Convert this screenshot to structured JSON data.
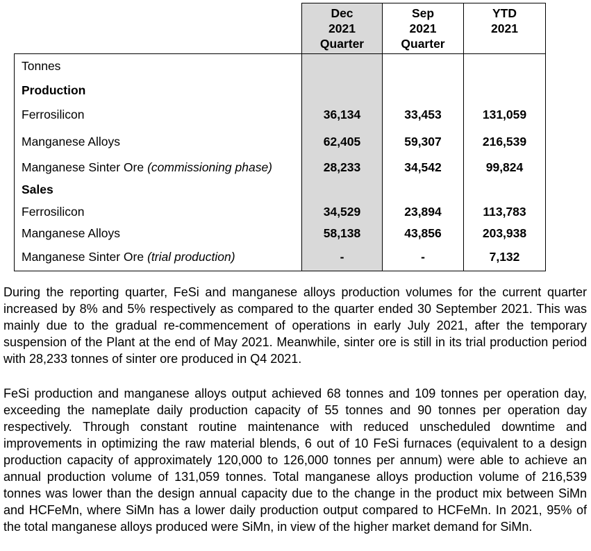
{
  "colors": {
    "highlight_fill": "#d9d9d9",
    "border": "#000000",
    "text": "#000000",
    "background": "#ffffff"
  },
  "table": {
    "headers": [
      {
        "label": "Dec\n2021\nQuarter",
        "highlighted": true
      },
      {
        "label": "Sep\n2021\nQuarter",
        "highlighted": false
      },
      {
        "label": "YTD\n2021",
        "highlighted": false
      }
    ],
    "rows": [
      {
        "label": "Tonnes",
        "style": "plain",
        "values": [
          "",
          "",
          ""
        ]
      },
      {
        "label": "Production",
        "style": "section",
        "values": [
          "",
          "",
          ""
        ]
      },
      {
        "label": "Ferrosilicon",
        "style": "item",
        "values": [
          "36,134",
          "33,453",
          "131,059"
        ]
      },
      {
        "label": "Manganese Alloys",
        "style": "item",
        "values": [
          "62,405",
          "59,307",
          "216,539"
        ]
      },
      {
        "label": "Manganese Sinter Ore",
        "note": "(commissioning phase)",
        "style": "item",
        "values": [
          "28,233",
          "34,542",
          "99,824"
        ]
      },
      {
        "label": "Sales",
        "style": "section",
        "values": [
          "",
          "",
          ""
        ]
      },
      {
        "label": "Ferrosilicon",
        "style": "item",
        "values": [
          "34,529",
          "23,894",
          "113,783"
        ]
      },
      {
        "label": "Manganese Alloys",
        "style": "item",
        "values": [
          "58,138",
          "43,856",
          "203,938"
        ]
      },
      {
        "label": "Manganese Sinter Ore",
        "note": "(trial production)",
        "style": "item",
        "values": [
          "-",
          "-",
          "7,132"
        ]
      }
    ]
  },
  "paragraphs": [
    {
      "text": "During the reporting quarter, FeSi and manganese alloys production volumes for the current quarter increased by 8% and 5% respectively as compared to the quarter ended 30 September 2021. This was mainly due to the gradual re-commencement of operations in early July 2021, after the temporary suspension of the Plant at the end of May 2021. Meanwhile, sinter ore is still in its trial production period with 28,233 tonnes of sinter ore produced in Q4 2021."
    },
    {
      "text": "FeSi production and manganese alloys output achieved 68 tonnes and 109 tonnes per operation day, exceeding the nameplate daily production capacity of 55 tonnes and 90 tonnes per operation day respectively. Through constant routine maintenance with reduced unscheduled downtime and improvements in optimizing the raw material blends, 6 out of 10 FeSi furnaces (equivalent to a design production capacity of approximately 120,000 to 126,000 tonnes per annum) were able to achieve an annual production volume of 131,059 tonnes. Total manganese alloys production volume of 216,539 tonnes was lower than the design annual capacity due to the change in the product mix between SiMn and HCFeMn, where SiMn has a lower daily production output compared to HCFeMn. In 2021, 95% of the total manganese alloys produced were SiMn, in view of the higher market demand for SiMn."
    }
  ]
}
